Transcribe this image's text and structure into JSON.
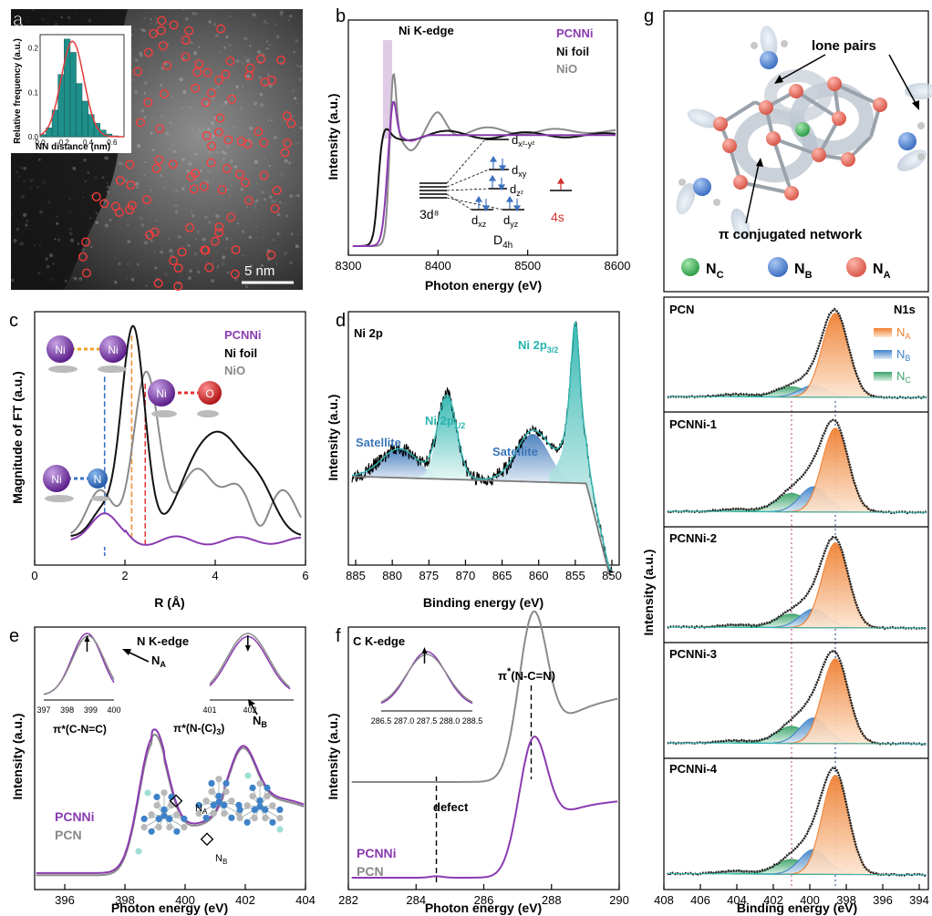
{
  "colors": {
    "pcnni": "#8a3bb0",
    "ni_foil": "#111111",
    "nio": "#8a8a8a",
    "pcn": "#8a8a8a",
    "NA": "#ef7d2d",
    "NB": "#3e82c9",
    "NC": "#3aa36a",
    "teal": "#2fb9b3",
    "red": "#e23b3b",
    "orange": "#f0913a"
  },
  "panels": {
    "a": {
      "letter": "a",
      "scalebar": "5 nm",
      "inset": {
        "ylabel": "Relative frequency (a.u.)",
        "xlabel": "NN distance (nm)",
        "xticks": [
          "0.0",
          "0.2",
          "0.4",
          "0.6"
        ],
        "yticks": [
          "0.0",
          "0.1",
          "0.2"
        ]
      }
    },
    "b": {
      "letter": "b",
      "edge": "Ni K-edge",
      "xlabel": "Photon energy (eV)",
      "ylabel": "Intensity (a.u.)",
      "xticks": [
        "8300",
        "8400",
        "8500",
        "8600"
      ],
      "legend": [
        "PCNNi",
        "Ni foil",
        "NiO"
      ],
      "orbitals": {
        "dx2y2": "d",
        "dx2y2_sub": "x²-y²",
        "dxy": "d",
        "dxy_sub": "xy",
        "dz2": "d",
        "dz2_sub": "z²",
        "dxz": "d",
        "dxz_sub": "xz",
        "dyz": "d",
        "dyz_sub": "yz",
        "d8": "3d⁸",
        "s4": "4s",
        "D": "D",
        "D_sub": "4h"
      }
    },
    "c": {
      "letter": "c",
      "xlabel": "R (Å)",
      "ylabel": "Magnitude of FT (a.u.)",
      "xticks": [
        "0",
        "2",
        "4",
        "6"
      ],
      "legend": [
        "PCNNi",
        "Ni foil",
        "NiO"
      ],
      "atoms": {
        "ni": "Ni",
        "o": "O",
        "n": "N"
      }
    },
    "d": {
      "letter": "d",
      "title": "Ni 2p",
      "xlabel": "Binding energy (eV)",
      "ylabel": "Intensity (a.u.)",
      "xticks": [
        "885",
        "880",
        "875",
        "870",
        "865",
        "860",
        "855",
        "850"
      ],
      "labels": {
        "satellite1": "Satellite",
        "satellite2": "Satellite",
        "p12": "Ni 2p",
        "p12_sub": "1/2",
        "p32": "Ni 2p",
        "p32_sub": "3/2"
      }
    },
    "e": {
      "letter": "e",
      "edge": "N K-edge",
      "xlabel": "Photon energy (eV)",
      "ylabel": "Intensity (a.u.)",
      "xticks": [
        "396",
        "398",
        "400",
        "402",
        "404"
      ],
      "legend": [
        "PCNNi",
        "PCN"
      ],
      "labels": {
        "NA": "N",
        "NA_sub": "A",
        "NB": "N",
        "NB_sub": "B",
        "pi1": "π*(C-N=C)",
        "pi2": "π*(N-(C)",
        "pi2_sub": "3",
        "pi2_end": ")",
        "mol_NA": "N",
        "mol_NA_sub": "A",
        "mol_NB": "N",
        "mol_NB_sub": "B"
      },
      "inset1_ticks": [
        "397",
        "398",
        "399",
        "400"
      ],
      "inset2_ticks": [
        "401",
        "402"
      ]
    },
    "f": {
      "letter": "f",
      "edge": "C K-edge",
      "xlabel": "Photon energy (eV)",
      "ylabel": "Intensity (a.u.)",
      "xticks": [
        "282",
        "284",
        "286",
        "288",
        "290"
      ],
      "legend": [
        "PCNNi",
        "PCN"
      ],
      "labels": {
        "pi": "π",
        "pi_sup": "*",
        "pi_rest": "(N-C=N)",
        "defect": "defect"
      },
      "inset_ticks": [
        "286.5",
        "287.0",
        "287.5",
        "288.0",
        "288.5"
      ]
    },
    "g": {
      "letter": "g",
      "labels": {
        "lone_pairs": "lone pairs",
        "pi_net": "π conjugated network",
        "NC": "N",
        "NC_sub": "C",
        "NB": "N",
        "NB_sub": "B",
        "NA": "N",
        "NA_sub": "A"
      },
      "xlabel": "Binding energy (eV)",
      "ylabel": "Intensity (a.u.)",
      "xticks": [
        "408",
        "406",
        "404",
        "402",
        "400",
        "398",
        "396",
        "394"
      ],
      "xps_title": "N1s",
      "legend": [
        {
          "main": "N",
          "sub": "A"
        },
        {
          "main": "N",
          "sub": "B"
        },
        {
          "main": "N",
          "sub": "C"
        }
      ],
      "samples": [
        "PCN",
        "PCNNi-1",
        "PCNNi-2",
        "PCNNi-3",
        "PCNNi-4"
      ]
    }
  },
  "chart_data": [
    {
      "panel": "a",
      "type": "bar",
      "title": "",
      "xlabel": "NN distance (nm)",
      "ylabel": "Relative frequency (a.u.)",
      "xlim": [
        0,
        0.7
      ],
      "ylim": [
        0,
        0.23
      ],
      "x": [
        0.05,
        0.1,
        0.15,
        0.2,
        0.25,
        0.3,
        0.35,
        0.4,
        0.45,
        0.5,
        0.55,
        0.6,
        0.65
      ],
      "values": [
        0.005,
        0.02,
        0.06,
        0.14,
        0.22,
        0.19,
        0.12,
        0.08,
        0.05,
        0.03,
        0.015,
        0.006,
        0.002
      ]
    },
    {
      "panel": "b",
      "type": "line",
      "xlabel": "Photon energy (eV)",
      "ylabel": "Intensity (a.u.)",
      "xlim": [
        8300,
        8600
      ],
      "series": [
        {
          "name": "PCNNi"
        },
        {
          "name": "Ni foil"
        },
        {
          "name": "NiO"
        }
      ]
    },
    {
      "panel": "c",
      "type": "line",
      "xlabel": "R (Å)",
      "ylabel": "Magnitude of FT (a.u.)",
      "xlim": [
        0,
        6
      ],
      "series": [
        {
          "name": "PCNNi"
        },
        {
          "name": "Ni foil"
        },
        {
          "name": "NiO"
        }
      ],
      "ref_lines": [
        1.55,
        2.15,
        2.45
      ]
    },
    {
      "panel": "d",
      "type": "line",
      "xlabel": "Binding energy (eV)",
      "ylabel": "Intensity (a.u.)",
      "xlim": [
        886,
        849
      ],
      "peaks": [
        {
          "label": "Satellite",
          "x": 879
        },
        {
          "label": "Ni 2p1/2",
          "x": 872.5
        },
        {
          "label": "Satellite",
          "x": 861
        },
        {
          "label": "Ni 2p3/2",
          "x": 855
        }
      ]
    },
    {
      "panel": "e",
      "type": "line",
      "xlabel": "Photon energy (eV)",
      "ylabel": "Intensity (a.u.)",
      "xlim": [
        395,
        404
      ],
      "series": [
        {
          "name": "PCNNi"
        },
        {
          "name": "PCN"
        }
      ],
      "peaks": [
        399,
        401.9
      ]
    },
    {
      "panel": "f",
      "type": "line",
      "xlabel": "Photon energy (eV)",
      "ylabel": "Intensity (a.u.)",
      "xlim": [
        282,
        290
      ],
      "series": [
        {
          "name": "PCNNi"
        },
        {
          "name": "PCN"
        }
      ],
      "ref_lines": [
        284.6,
        287.4
      ]
    },
    {
      "panel": "g",
      "type": "area",
      "xlabel": "Binding energy (eV)",
      "ylabel": "Intensity (a.u.)",
      "xlim": [
        408,
        393.5
      ],
      "samples": [
        "PCN",
        "PCNNi-1",
        "PCNNi-2",
        "PCNNi-3",
        "PCNNi-4"
      ],
      "components": [
        {
          "name": "NA",
          "x": 398.6
        },
        {
          "name": "NB",
          "x": 399.8
        },
        {
          "name": "NC",
          "x": 401
        }
      ]
    }
  ]
}
